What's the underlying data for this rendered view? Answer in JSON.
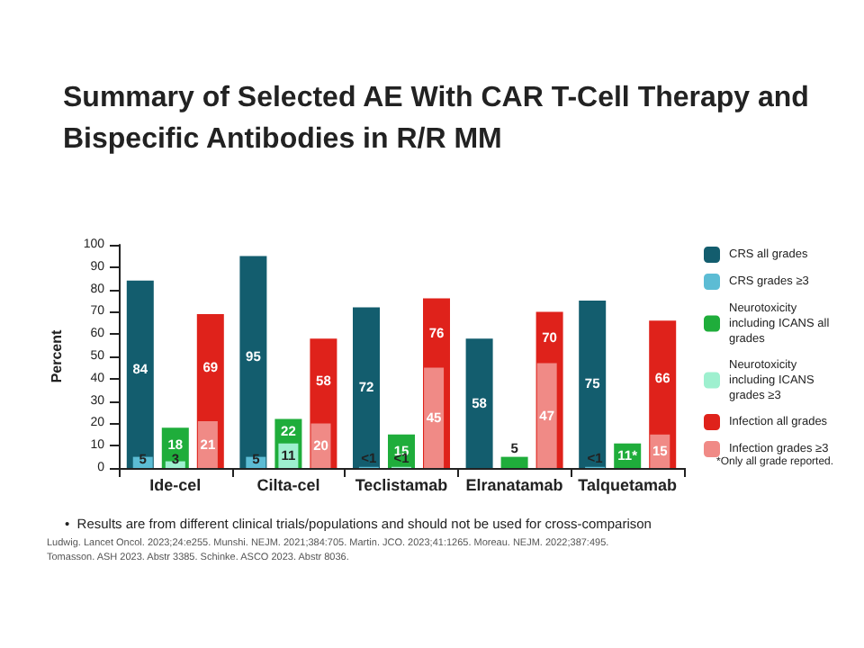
{
  "chart_data": {
    "type": "bar",
    "title": "Summary of Selected AE With CAR T-Cell Therapy and Bispecific Antibodies in R/R MM",
    "ylabel": "Percent",
    "categories": [
      "Ide-cel",
      "Cilta-cel",
      "Teclistamab",
      "Elranatamab",
      "Talquetamab"
    ],
    "series": [
      {
        "name": "CRS all grades",
        "color": "#135d6e",
        "values": [
          84,
          95,
          72,
          58,
          75
        ],
        "value_labels": [
          "84",
          "95",
          "72",
          "58",
          "75"
        ]
      },
      {
        "name": "CRS grades ≥3",
        "color": "#5cbcd4",
        "values": [
          5,
          5,
          0.5,
          null,
          0.5
        ],
        "value_labels": [
          "5",
          "5",
          "<1",
          null,
          "<1"
        ]
      },
      {
        "name": "Neurotoxicity including ICANS all grades",
        "color": "#1fad3b",
        "values": [
          18,
          22,
          15,
          5,
          11
        ],
        "value_labels": [
          "18",
          "22",
          "15",
          "5",
          "11*"
        ]
      },
      {
        "name": "Neurotoxicity including ICANS grades ≥3",
        "color": "#9ef0cf",
        "values": [
          3,
          11,
          0.5,
          null,
          null
        ],
        "value_labels": [
          "3",
          "11",
          "<1",
          null,
          null
        ]
      },
      {
        "name": "Infection all grades",
        "color": "#df221b",
        "values": [
          69,
          58,
          76,
          70,
          66
        ],
        "value_labels": [
          "69",
          "58",
          "76",
          "70",
          "66"
        ]
      },
      {
        "name": "Infection grades ≥3",
        "color": "#f08a86",
        "values": [
          21,
          20,
          45,
          47,
          15
        ],
        "value_labels": [
          "21",
          "20",
          "45",
          "47",
          "15"
        ]
      }
    ],
    "ylim": [
      0,
      100
    ],
    "yticks": [
      0,
      10,
      20,
      30,
      40,
      50,
      60,
      70,
      80,
      90,
      100
    ],
    "grid": false,
    "legend": "right",
    "annotations": [
      "*Only all grade reported.",
      "•  Results are from different clinical trials/populations and should not be used for cross-comparison",
      "Ludwig. Lancet Oncol. 2023;24:e255. Munshi. NEJM. 2021;384:705. Martin. JCO. 2023;41:1265. Moreau. NEJM. 2022;387:495.",
      "Tomasson. ASH 2023. Abstr 3385. Schinke. ASCO 2023. Abstr 8036."
    ]
  }
}
